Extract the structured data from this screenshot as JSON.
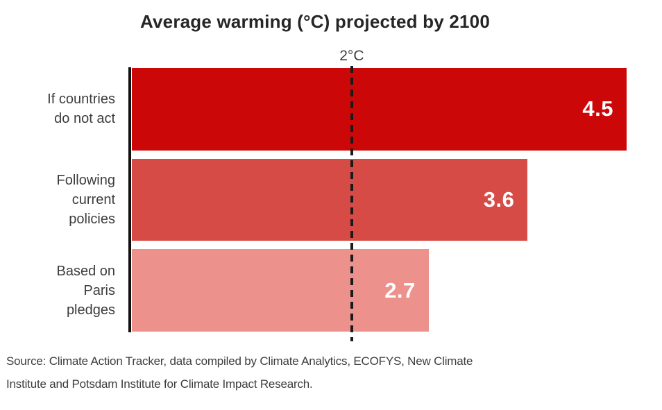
{
  "chart_data": {
    "type": "bar",
    "orientation": "horizontal",
    "title": "Average warming (°C) projected by 2100",
    "categories": [
      "If countries do not act",
      "Following current policies",
      "Based on Paris pledges"
    ],
    "values": [
      4.5,
      3.6,
      2.7
    ],
    "value_labels": [
      "4.5",
      "3.6",
      "2.7"
    ],
    "bar_colors": [
      "#cb0707",
      "#d74b46",
      "#ec918b"
    ],
    "value_label_color": "#ffffff",
    "xlim": [
      0,
      4.5
    ],
    "reference_line": {
      "value": 2,
      "label": "2°C",
      "style": "dashed",
      "color": "#1a1a1a"
    },
    "axis_color": "#111111",
    "grid": false,
    "legend": false,
    "xlabel": "",
    "ylabel": ""
  },
  "source": {
    "lines": [
      "Source: Climate Action Tracker, data compiled by Climate Analytics, ECOFYS, New Climate",
      "Institute and Potsdam Institute for Climate Impact Research."
    ],
    "full_text": "Source: Climate Action Tracker, data compiled by Climate Analytics, ECOFYS, New Climate Institute and Potsdam Institute for Climate Impact Research."
  },
  "colors": {
    "background": "#ffffff",
    "title_text": "#262626",
    "label_text": "#3d3d3d"
  }
}
